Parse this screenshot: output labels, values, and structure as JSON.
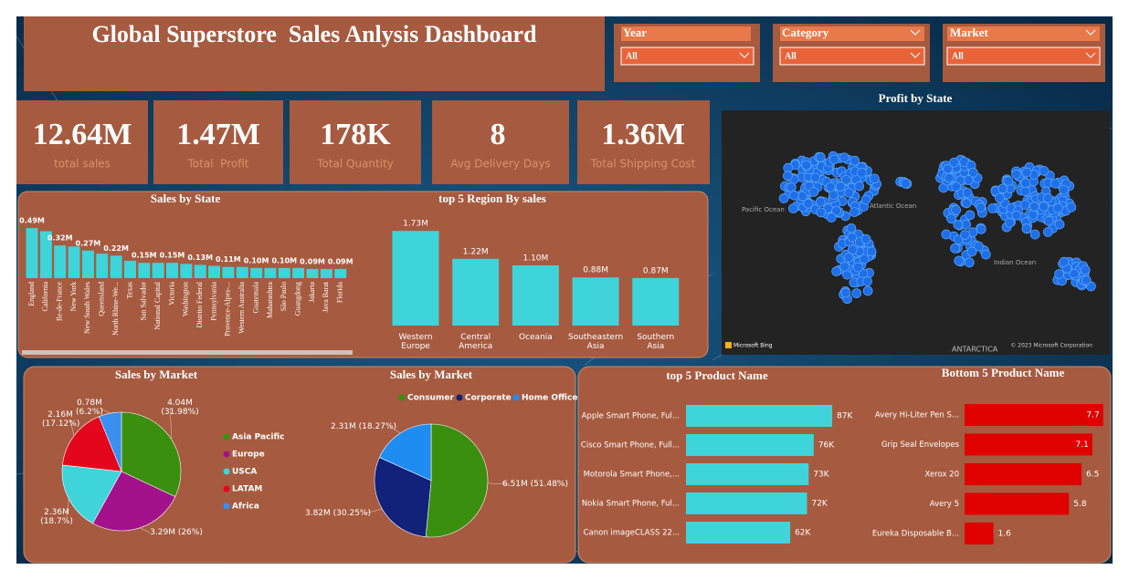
{
  "header": {
    "title": "Global Superstore  Sales Anlysis Dashboard"
  },
  "slicers": [
    {
      "label": "Year",
      "value": "All"
    },
    {
      "label": "Category",
      "value": "All"
    },
    {
      "label": "Market",
      "value": "All"
    }
  ],
  "kpis": [
    {
      "value": "12.64M",
      "label": "total sales"
    },
    {
      "value": "1.47M",
      "label": "Total  Profit"
    },
    {
      "value": "178K",
      "label": "Total Quantity"
    },
    {
      "value": "8",
      "label": "Avg Delivery Days"
    },
    {
      "value": "1.36M",
      "label": "Total Shipping Cost"
    }
  ],
  "map": {
    "title": "Profit by State",
    "labels": [
      "Pacific Ocean",
      "Atlantic Ocean",
      "Indian Ocean",
      "ANTARCTICA"
    ],
    "attribution": [
      "Microsoft Bing",
      "© 2023 Microsoft Corporation"
    ]
  },
  "chart_data": [
    {
      "type": "bar",
      "title": "Sales by State",
      "color": "#3fd3da",
      "categories": [
        "England",
        "California",
        "Ile-de-France",
        "New York",
        "New South Wales",
        "Queensland",
        "North Rhine-We...",
        "Texas",
        "San Salvador",
        "National Capital",
        "Victoria",
        "Washington",
        "Distrito Federal",
        "Pennsylvania",
        "Provence-Alpes-...",
        "Western Australia",
        "Guatemala",
        "Maharashtra",
        "São Paulo",
        "Guangdong",
        "Jakarta",
        "Java Barat",
        "Florida"
      ],
      "values": [
        0.49,
        0.46,
        0.32,
        0.31,
        0.27,
        0.24,
        0.22,
        0.17,
        0.15,
        0.15,
        0.15,
        0.14,
        0.13,
        0.12,
        0.11,
        0.11,
        0.1,
        0.1,
        0.1,
        0.1,
        0.09,
        0.09,
        0.09
      ],
      "value_labels": [
        "0.49M",
        null,
        "0.32M",
        null,
        "0.27M",
        null,
        "0.22M",
        null,
        "0.15M",
        null,
        "0.15M",
        null,
        "0.13M",
        null,
        "0.11M",
        null,
        "0.10M",
        null,
        "0.10M",
        null,
        "0.09M",
        null,
        "0.09M"
      ]
    },
    {
      "type": "bar",
      "title": "top 5 Region By sales",
      "color": "#3fd3da",
      "categories": [
        "Western Europe",
        "Central America",
        "Oceania",
        "Southeastern Asia",
        "Southern Asia"
      ],
      "values": [
        1.73,
        1.22,
        1.1,
        0.88,
        0.87
      ],
      "value_labels": [
        "1.73M",
        "1.22M",
        "1.10M",
        "0.88M",
        "0.87M"
      ]
    },
    {
      "type": "pie",
      "title": "Sales by Market",
      "legend": "right",
      "categories": [
        "Asia Pacific",
        "Europe",
        "USCA",
        "LATAM",
        "Africa"
      ],
      "values": [
        4.04,
        3.29,
        2.36,
        2.16,
        0.78
      ],
      "value_labels": [
        "4.04M (31.98%)",
        "3.29M (26%)",
        "2.36M (18.7%)",
        "2.16M (17.12%)",
        "0.78M (6.2%)"
      ],
      "colors": [
        "#3a8f0e",
        "#a3128a",
        "#3fd3da",
        "#e3061d",
        "#3a8ff0"
      ]
    },
    {
      "type": "pie",
      "title": "Sales by Market",
      "legend": "top",
      "categories": [
        "Consumer",
        "Corporate",
        "Home Office"
      ],
      "values": [
        6.51,
        3.82,
        2.31
      ],
      "value_labels": [
        "6.51M (51.48%)",
        "3.82M (30.25%)",
        "2.31M (18.27%)"
      ],
      "colors": [
        "#3a8f0e",
        "#12217a",
        "#1e8cf0"
      ]
    },
    {
      "type": "barh",
      "title": "top 5 Product Name",
      "color": "#3fd3da",
      "categories": [
        "Apple Smart Phone, Ful...",
        "Cisco Smart Phone, Full...",
        "Motorola Smart Phone,...",
        "Nokia Smart Phone, Ful...",
        "Canon imageCLASS 22..."
      ],
      "values": [
        87,
        76,
        73,
        72,
        62
      ],
      "value_labels": [
        "87K",
        "76K",
        "73K",
        "72K",
        "62K"
      ]
    },
    {
      "type": "barh",
      "title": "Bottom 5 Product Name",
      "color": "#e00000",
      "categories": [
        "Avery Hi-Liter Pen S...",
        "Grip Seal Envelopes",
        "Xerox 20",
        "Avery 5",
        "Eureka Disposable B..."
      ],
      "values": [
        7.7,
        7.1,
        6.5,
        5.8,
        1.6
      ]
    }
  ]
}
